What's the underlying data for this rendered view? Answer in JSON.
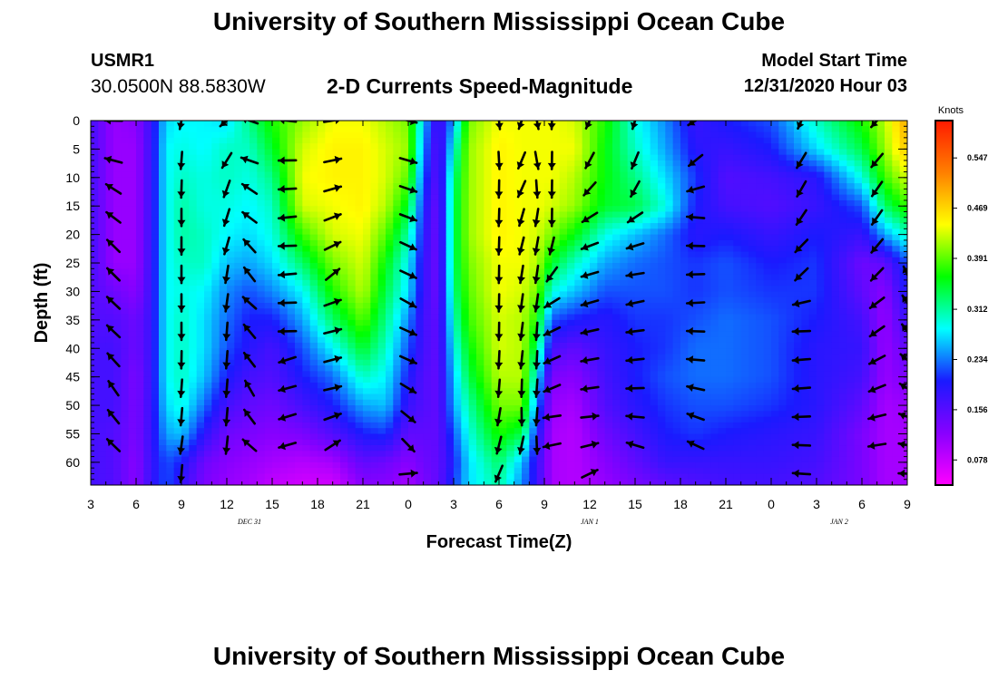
{
  "header": {
    "title": "University of Southern Mississippi Ocean Cube",
    "station_id": "USMR1",
    "station_location": "30.0500N 88.5830W",
    "plot_title": "2-D Currents Speed-Magnitude",
    "model_start_label": "Model Start Time",
    "model_start_value": "12/31/2020 Hour 03"
  },
  "footer": {
    "title": "University of Southern Mississippi Ocean Cube"
  },
  "chart_data": {
    "type": "heatmap",
    "xlabel": "Forecast Time(Z)",
    "ylabel": "Depth (ft)",
    "x_ticks": [
      "3",
      "6",
      "9",
      "12",
      "15",
      "18",
      "21",
      "0",
      "3",
      "6",
      "9",
      "12",
      "15",
      "18",
      "21",
      "0",
      "3",
      "6",
      "9"
    ],
    "x_range_hours": [
      0,
      54
    ],
    "date_labels": [
      {
        "text": "DEC 31",
        "hour": 10.5
      },
      {
        "text": "JAN 1",
        "hour": 33
      },
      {
        "text": "JAN 2",
        "hour": 49.5
      }
    ],
    "y_ticks": [
      0,
      5,
      10,
      15,
      20,
      25,
      30,
      35,
      40,
      45,
      50,
      55,
      60
    ],
    "ylim": [
      0,
      64
    ],
    "y_reversed": true,
    "colorbar": {
      "unit": "Knots",
      "tick_labels": [
        "0.547",
        "0.469",
        "0.391",
        "0.312",
        "0.234",
        "0.156",
        "0.078"
      ],
      "vmin": 0.039,
      "vmax": 0.605,
      "colors": [
        "#ff00ff",
        "#8800ff",
        "#1a1aff",
        "#00ffff",
        "#00ff00",
        "#ffff00",
        "#ff8000",
        "#ff1a00"
      ]
    },
    "speed_profiles": {
      "depths": [
        0,
        5,
        10,
        15,
        20,
        25,
        30,
        35,
        40,
        45,
        50,
        55,
        60,
        64
      ],
      "columns": [
        {
          "hour": 0,
          "values": [
            0.17,
            0.17,
            0.17,
            0.17,
            0.17,
            0.17,
            0.16,
            0.16,
            0.17,
            0.17,
            0.17,
            0.17,
            0.17,
            0.17
          ]
        },
        {
          "hour": 1.5,
          "values": [
            0.11,
            0.11,
            0.11,
            0.11,
            0.11,
            0.11,
            0.14,
            0.16,
            0.17,
            0.17,
            0.17,
            0.16,
            0.16,
            0.16
          ]
        },
        {
          "hour": 3,
          "values": [
            0.12,
            0.11,
            0.11,
            0.11,
            0.11,
            0.11,
            0.12,
            0.14,
            0.14,
            0.13,
            0.13,
            0.13,
            0.12,
            0.12
          ]
        },
        {
          "hour": 4,
          "values": [
            0.18,
            0.18,
            0.18,
            0.18,
            0.18,
            0.18,
            0.18,
            0.18,
            0.18,
            0.18,
            0.18,
            0.18,
            0.18,
            0.18
          ]
        },
        {
          "hour": 5,
          "values": [
            0.27,
            0.28,
            0.28,
            0.28,
            0.28,
            0.28,
            0.28,
            0.28,
            0.28,
            0.28,
            0.27,
            0.25,
            0.22,
            0.22
          ]
        },
        {
          "hour": 6,
          "values": [
            0.28,
            0.29,
            0.3,
            0.31,
            0.31,
            0.3,
            0.29,
            0.3,
            0.3,
            0.3,
            0.29,
            0.26,
            0.2,
            0.18
          ]
        },
        {
          "hour": 7.5,
          "values": [
            0.28,
            0.28,
            0.29,
            0.29,
            0.3,
            0.3,
            0.28,
            0.27,
            0.27,
            0.26,
            0.23,
            0.19,
            0.14,
            0.13
          ]
        },
        {
          "hour": 9,
          "values": [
            0.27,
            0.3,
            0.3,
            0.29,
            0.28,
            0.26,
            0.24,
            0.23,
            0.22,
            0.2,
            0.17,
            0.14,
            0.12,
            0.11
          ]
        },
        {
          "hour": 10.5,
          "values": [
            0.32,
            0.3,
            0.29,
            0.28,
            0.27,
            0.25,
            0.22,
            0.2,
            0.19,
            0.17,
            0.15,
            0.13,
            0.11,
            0.1
          ]
        },
        {
          "hour": 12,
          "values": [
            0.37,
            0.35,
            0.32,
            0.3,
            0.29,
            0.27,
            0.24,
            0.2,
            0.17,
            0.16,
            0.14,
            0.12,
            0.1,
            0.08
          ]
        },
        {
          "hour": 14,
          "values": [
            0.41,
            0.43,
            0.44,
            0.43,
            0.38,
            0.33,
            0.28,
            0.25,
            0.22,
            0.2,
            0.17,
            0.13,
            0.09,
            0.07
          ]
        },
        {
          "hour": 16,
          "values": [
            0.44,
            0.45,
            0.45,
            0.44,
            0.43,
            0.4,
            0.37,
            0.33,
            0.28,
            0.23,
            0.2,
            0.16,
            0.1,
            0.07
          ]
        },
        {
          "hour": 18,
          "values": [
            0.44,
            0.45,
            0.45,
            0.45,
            0.44,
            0.43,
            0.42,
            0.39,
            0.35,
            0.3,
            0.25,
            0.2,
            0.15,
            0.12
          ]
        },
        {
          "hour": 19.5,
          "values": [
            0.42,
            0.43,
            0.43,
            0.42,
            0.39,
            0.36,
            0.34,
            0.32,
            0.3,
            0.28,
            0.26,
            0.21,
            0.14,
            0.12
          ]
        },
        {
          "hour": 21,
          "values": [
            0.4,
            0.41,
            0.39,
            0.35,
            0.31,
            0.28,
            0.27,
            0.24,
            0.22,
            0.2,
            0.18,
            0.15,
            0.12,
            0.1
          ]
        },
        {
          "hour": 22,
          "values": [
            0.26,
            0.24,
            0.22,
            0.2,
            0.19,
            0.18,
            0.18,
            0.17,
            0.17,
            0.16,
            0.16,
            0.15,
            0.14,
            0.13
          ]
        },
        {
          "hour": 23,
          "values": [
            0.16,
            0.15,
            0.15,
            0.14,
            0.14,
            0.14,
            0.14,
            0.15,
            0.15,
            0.15,
            0.15,
            0.15,
            0.15,
            0.15
          ]
        },
        {
          "hour": 24,
          "values": [
            0.25,
            0.29,
            0.32,
            0.33,
            0.33,
            0.33,
            0.32,
            0.3,
            0.28,
            0.26,
            0.25,
            0.22,
            0.2,
            0.21
          ]
        },
        {
          "hour": 25,
          "values": [
            0.4,
            0.41,
            0.41,
            0.41,
            0.41,
            0.4,
            0.39,
            0.38,
            0.36,
            0.34,
            0.31,
            0.29,
            0.27,
            0.27
          ]
        },
        {
          "hour": 27,
          "values": [
            0.44,
            0.45,
            0.45,
            0.45,
            0.45,
            0.44,
            0.44,
            0.43,
            0.43,
            0.42,
            0.4,
            0.37,
            0.33,
            0.31
          ]
        },
        {
          "hour": 28.5,
          "values": [
            0.44,
            0.44,
            0.44,
            0.44,
            0.44,
            0.44,
            0.43,
            0.42,
            0.42,
            0.42,
            0.4,
            0.34,
            0.26,
            0.24
          ]
        },
        {
          "hour": 29.5,
          "values": [
            0.44,
            0.44,
            0.44,
            0.44,
            0.43,
            0.42,
            0.4,
            0.37,
            0.33,
            0.28,
            0.24,
            0.2,
            0.18,
            0.18
          ]
        },
        {
          "hour": 30.5,
          "values": [
            0.44,
            0.44,
            0.44,
            0.43,
            0.4,
            0.35,
            0.29,
            0.22,
            0.17,
            0.13,
            0.11,
            0.1,
            0.1,
            0.1
          ]
        },
        {
          "hour": 32,
          "values": [
            0.43,
            0.44,
            0.42,
            0.41,
            0.36,
            0.3,
            0.26,
            0.2,
            0.15,
            0.12,
            0.1,
            0.09,
            0.09,
            0.09
          ]
        },
        {
          "hour": 34,
          "values": [
            0.37,
            0.36,
            0.36,
            0.35,
            0.29,
            0.25,
            0.22,
            0.19,
            0.18,
            0.17,
            0.16,
            0.14,
            0.12,
            0.11
          ]
        },
        {
          "hour": 36,
          "values": [
            0.29,
            0.3,
            0.32,
            0.34,
            0.26,
            0.23,
            0.22,
            0.21,
            0.2,
            0.2,
            0.19,
            0.17,
            0.15,
            0.13
          ]
        },
        {
          "hour": 38,
          "values": [
            0.24,
            0.25,
            0.27,
            0.29,
            0.23,
            0.22,
            0.22,
            0.21,
            0.21,
            0.22,
            0.21,
            0.2,
            0.18,
            0.15
          ]
        },
        {
          "hour": 40,
          "values": [
            0.18,
            0.19,
            0.21,
            0.2,
            0.19,
            0.21,
            0.21,
            0.22,
            0.23,
            0.23,
            0.22,
            0.21,
            0.18,
            0.16
          ]
        },
        {
          "hour": 42,
          "values": [
            0.2,
            0.18,
            0.16,
            0.17,
            0.2,
            0.22,
            0.22,
            0.23,
            0.23,
            0.23,
            0.22,
            0.2,
            0.18,
            0.17
          ]
        },
        {
          "hour": 45,
          "values": [
            0.22,
            0.2,
            0.17,
            0.16,
            0.18,
            0.2,
            0.21,
            0.22,
            0.22,
            0.22,
            0.21,
            0.19,
            0.18,
            0.17
          ]
        },
        {
          "hour": 48,
          "values": [
            0.3,
            0.27,
            0.19,
            0.18,
            0.2,
            0.21,
            0.21,
            0.2,
            0.19,
            0.19,
            0.19,
            0.18,
            0.17,
            0.16
          ]
        },
        {
          "hour": 51,
          "values": [
            0.37,
            0.34,
            0.29,
            0.22,
            0.18,
            0.14,
            0.15,
            0.17,
            0.18,
            0.17,
            0.15,
            0.13,
            0.13,
            0.13
          ]
        },
        {
          "hour": 52.5,
          "values": [
            0.42,
            0.41,
            0.38,
            0.33,
            0.25,
            0.15,
            0.12,
            0.11,
            0.11,
            0.11,
            0.1,
            0.1,
            0.1,
            0.1
          ]
        },
        {
          "hour": 54,
          "values": [
            0.5,
            0.48,
            0.43,
            0.38,
            0.3,
            0.22,
            0.2,
            0.18,
            0.15,
            0.13,
            0.11,
            0.1,
            0.1,
            0.1
          ]
        }
      ]
    },
    "vector_depths": [
      0,
      7,
      12,
      17,
      22,
      27,
      32,
      37,
      42,
      47,
      52,
      57,
      62
    ],
    "vector_columns": [
      {
        "hour": 1.5,
        "angles": [
          181,
          195,
          213,
          217,
          224,
          225,
          223,
          223,
          228,
          235,
          231,
          224,
          0
        ]
      },
      {
        "hour": 6,
        "angles": [
          101,
          94,
          92,
          90,
          90,
          90,
          90,
          90,
          91,
          94,
          95,
          98,
          95
        ]
      },
      {
        "hour": 9,
        "angles": [
          139,
          122,
          110,
          107,
          106,
          99,
          98,
          94,
          94,
          94,
          95,
          96,
          0
        ]
      },
      {
        "hour": 10.5,
        "angles": [
          199,
          199,
          214,
          217,
          228,
          232,
          222,
          230,
          232,
          240,
          233,
          221,
          0
        ]
      },
      {
        "hour": 13,
        "angles": [
          187,
          179,
          177,
          174,
          178,
          175,
          178,
          179,
          162,
          165,
          163,
          164,
          0
        ]
      },
      {
        "hour": 16,
        "angles": [
          351,
          348,
          344,
          339,
          334,
          321,
          340,
          346,
          345,
          347,
          340,
          327,
          0
        ]
      },
      {
        "hour": 21,
        "angles": [
          14,
          16,
          19,
          21,
          25,
          25,
          29,
          24,
          24,
          31,
          39,
          46,
          355
        ]
      },
      {
        "hour": 27,
        "angles": [
          84,
          87,
          91,
          92,
          92,
          91,
          91,
          91,
          93,
          95,
          100,
          104,
          113
        ]
      },
      {
        "hour": 28.5,
        "angles": [
          109,
          113,
          114,
          106,
          104,
          99,
          98,
          97,
          96,
          92,
          89,
          102,
          0
        ]
      },
      {
        "hour": 29.5,
        "angles": [
          79,
          80,
          86,
          99,
          100,
          98,
          98,
          94,
          93,
          94,
          94,
          88,
          0
        ]
      },
      {
        "hour": 30.5,
        "angles": [
          92,
          91,
          91,
          91,
          104,
          126,
          148,
          154,
          156,
          157,
          172,
          168,
          0
        ]
      },
      {
        "hour": 33,
        "angles": [
          115,
          118,
          132,
          148,
          159,
          164,
          164,
          167,
          170,
          172,
          354,
          346,
          334
        ]
      },
      {
        "hour": 36,
        "angles": [
          107,
          112,
          119,
          146,
          163,
          171,
          168,
          173,
          174,
          178,
          185,
          197,
          0
        ]
      },
      {
        "hour": 40,
        "angles": [
          148,
          141,
          164,
          185,
          181,
          178,
          177,
          182,
          185,
          192,
          200,
          205,
          0
        ]
      },
      {
        "hour": 47,
        "angles": [
          114,
          121,
          120,
          124,
          134,
          136,
          167,
          178,
          175,
          176,
          178,
          182,
          184
        ]
      },
      {
        "hour": 52,
        "angles": [
          132,
          130,
          125,
          125,
          130,
          134,
          143,
          145,
          152,
          158,
          166,
          171,
          0
        ]
      },
      {
        "hour": 54,
        "angles": [
          0,
          0,
          0,
          0,
          0,
          245,
          237,
          233,
          220,
          212,
          200,
          191,
          182
        ]
      }
    ]
  }
}
